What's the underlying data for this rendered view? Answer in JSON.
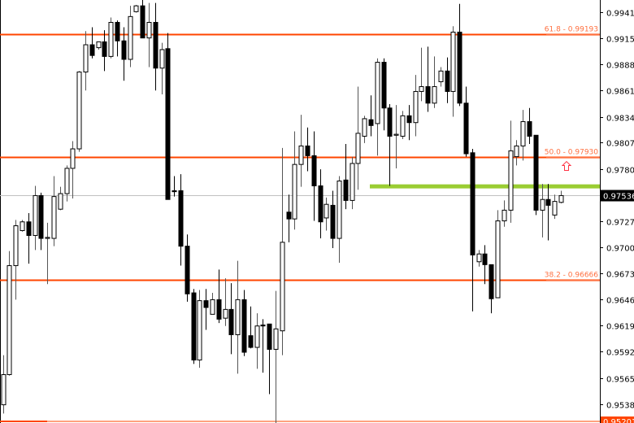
{
  "chart_data": {
    "type": "candlestick",
    "y_range": [
      0.9519,
      0.9954
    ],
    "y_ticks": [
      "0.99415",
      "0.99150",
      "0.98880",
      "0.98610",
      "0.98340",
      "0.98075",
      "0.97805",
      "0.97270",
      "0.97000",
      "0.96730",
      "0.96460",
      "0.96195",
      "0.95925",
      "0.95655",
      "0.95385"
    ],
    "current_price": "0.97536",
    "bottom_price_label": "0.95201",
    "fib_levels": [
      {
        "label": "61.8 - 0.99193",
        "price": 0.99193
      },
      {
        "label": "50.0 - 0.97930",
        "price": 0.9793
      },
      {
        "label": "38.2 - 0.96666",
        "price": 0.96666
      }
    ],
    "support_line": {
      "price": 0.97625,
      "color": "#9acd32"
    },
    "signal": {
      "type": "up-arrow",
      "price": 0.9783,
      "color": "#ff3344"
    },
    "colors": {
      "fib": "#ff4500",
      "fib_text": "#ff7040",
      "bull": "#ffffff",
      "bear": "#000000",
      "current_line": "#c0c0c0"
    },
    "candles": [
      [
        0.9538,
        0.9589,
        0.9529,
        0.9569
      ],
      [
        0.9569,
        0.9696,
        0.9568,
        0.9681
      ],
      [
        0.9681,
        0.9728,
        0.9646,
        0.9722
      ],
      [
        0.9717,
        0.9728,
        0.9716,
        0.9726
      ],
      [
        0.9726,
        0.9735,
        0.9683,
        0.9712
      ],
      [
        0.9712,
        0.9763,
        0.9697,
        0.9753
      ],
      [
        0.9753,
        0.9756,
        0.9697,
        0.9709
      ],
      [
        0.9709,
        0.9725,
        0.9662,
        0.971
      ],
      [
        0.9709,
        0.9773,
        0.9701,
        0.9752
      ],
      [
        0.9739,
        0.9762,
        0.9738,
        0.9755
      ],
      [
        0.9755,
        0.9784,
        0.9747,
        0.9781
      ],
      [
        0.9781,
        0.9809,
        0.975,
        0.9801
      ],
      [
        0.9801,
        0.9881,
        0.9798,
        0.988
      ],
      [
        0.988,
        0.9922,
        0.9861,
        0.9908
      ],
      [
        0.9908,
        0.9926,
        0.9894,
        0.9897
      ],
      [
        0.9905,
        0.9911,
        0.9903,
        0.9911
      ],
      [
        0.9911,
        0.9923,
        0.9881,
        0.9896
      ],
      [
        0.9896,
        0.9936,
        0.9894,
        0.9931
      ],
      [
        0.9931,
        0.9933,
        0.9896,
        0.9912
      ],
      [
        0.9912,
        0.9926,
        0.9871,
        0.9893
      ],
      [
        0.9893,
        0.9948,
        0.9885,
        0.9937
      ],
      [
        0.9942,
        0.9949,
        0.9941,
        0.9948
      ],
      [
        0.9948,
        0.9954,
        0.9915,
        0.9915
      ],
      [
        0.9915,
        0.9951,
        0.9885,
        0.9931
      ],
      [
        0.9931,
        0.9951,
        0.9861,
        0.9884
      ],
      [
        0.9884,
        0.991,
        0.9857,
        0.9903
      ],
      [
        0.9904,
        0.992,
        0.9749,
        0.9749
      ],
      [
        0.9758,
        0.9773,
        0.9752,
        0.9757
      ],
      [
        0.9758,
        0.9775,
        0.9681,
        0.9701
      ],
      [
        0.9701,
        0.9713,
        0.9644,
        0.9652
      ],
      [
        0.9653,
        0.9657,
        0.958,
        0.9584
      ],
      [
        0.9584,
        0.9656,
        0.9576,
        0.9645
      ],
      [
        0.9645,
        0.9657,
        0.9615,
        0.9638
      ],
      [
        0.9631,
        0.9653,
        0.9631,
        0.9646
      ],
      [
        0.9646,
        0.9677,
        0.9622,
        0.9626
      ],
      [
        0.9627,
        0.9668,
        0.9619,
        0.9636
      ],
      [
        0.9636,
        0.9663,
        0.959,
        0.961
      ],
      [
        0.961,
        0.9686,
        0.957,
        0.9646
      ],
      [
        0.9646,
        0.9656,
        0.9588,
        0.9592
      ],
      [
        0.9609,
        0.9639,
        0.9596,
        0.9597
      ],
      [
        0.9597,
        0.9632,
        0.9575,
        0.9619
      ],
      [
        0.962,
        0.9626,
        0.9571,
        0.9619
      ],
      [
        0.9621,
        0.9621,
        0.9549,
        0.9595
      ],
      [
        0.9595,
        0.9655,
        0.9519,
        0.9616
      ],
      [
        0.9614,
        0.9802,
        0.9589,
        0.9705
      ],
      [
        0.9736,
        0.9754,
        0.9705,
        0.9729
      ],
      [
        0.9729,
        0.9819,
        0.9718,
        0.9785
      ],
      [
        0.9785,
        0.9836,
        0.9762,
        0.9804
      ],
      [
        0.9804,
        0.9823,
        0.9778,
        0.9794
      ],
      [
        0.9794,
        0.9819,
        0.9727,
        0.9763
      ],
      [
        0.9763,
        0.978,
        0.9709,
        0.9726
      ],
      [
        0.973,
        0.9751,
        0.9717,
        0.9744
      ],
      [
        0.9743,
        0.9758,
        0.9699,
        0.9709
      ],
      [
        0.9709,
        0.9773,
        0.9684,
        0.9768
      ],
      [
        0.9769,
        0.9806,
        0.9739,
        0.9748
      ],
      [
        0.9748,
        0.9793,
        0.9739,
        0.9786
      ],
      [
        0.9786,
        0.9865,
        0.9759,
        0.9817
      ],
      [
        0.9814,
        0.9835,
        0.9807,
        0.9832
      ],
      [
        0.9831,
        0.9856,
        0.9814,
        0.9825
      ],
      [
        0.9827,
        0.9894,
        0.9794,
        0.989
      ],
      [
        0.989,
        0.9894,
        0.982,
        0.9843
      ],
      [
        0.9843,
        0.9847,
        0.9763,
        0.9814
      ],
      [
        0.9815,
        0.9846,
        0.9781,
        0.9816
      ],
      [
        0.9814,
        0.984,
        0.9811,
        0.9835
      ],
      [
        0.9835,
        0.9846,
        0.981,
        0.9828
      ],
      [
        0.9828,
        0.9877,
        0.9814,
        0.986
      ],
      [
        0.986,
        0.9905,
        0.985,
        0.9865
      ],
      [
        0.9865,
        0.9906,
        0.9839,
        0.9848
      ],
      [
        0.9848,
        0.9896,
        0.9843,
        0.9865
      ],
      [
        0.987,
        0.9885,
        0.9865,
        0.9881
      ],
      [
        0.9881,
        0.9895,
        0.9848,
        0.986
      ],
      [
        0.986,
        0.9927,
        0.9834,
        0.9921
      ],
      [
        0.9921,
        0.995,
        0.9845,
        0.9848
      ],
      [
        0.9848,
        0.9865,
        0.9793,
        0.9796
      ],
      [
        0.9797,
        0.9801,
        0.9634,
        0.9692
      ],
      [
        0.9685,
        0.9697,
        0.968,
        0.9693
      ],
      [
        0.9693,
        0.9702,
        0.9662,
        0.9682
      ],
      [
        0.9682,
        0.9682,
        0.9632,
        0.9647
      ],
      [
        0.9648,
        0.9738,
        0.9648,
        0.9727
      ],
      [
        0.9727,
        0.9748,
        0.9721,
        0.9738
      ],
      [
        0.9738,
        0.983,
        0.9725,
        0.9799
      ],
      [
        0.9793,
        0.981,
        0.9784,
        0.9804
      ],
      [
        0.9804,
        0.9841,
        0.9789,
        0.9829
      ],
      [
        0.9829,
        0.9843,
        0.9806,
        0.9814
      ],
      [
        0.9815,
        0.9815,
        0.9733,
        0.9738
      ],
      [
        0.9738,
        0.9765,
        0.971,
        0.9749
      ],
      [
        0.9749,
        0.9765,
        0.9707,
        0.9743
      ],
      [
        0.9733,
        0.9754,
        0.9729,
        0.9747
      ],
      [
        0.9746,
        0.9758,
        0.9745,
        0.9753
      ]
    ]
  }
}
